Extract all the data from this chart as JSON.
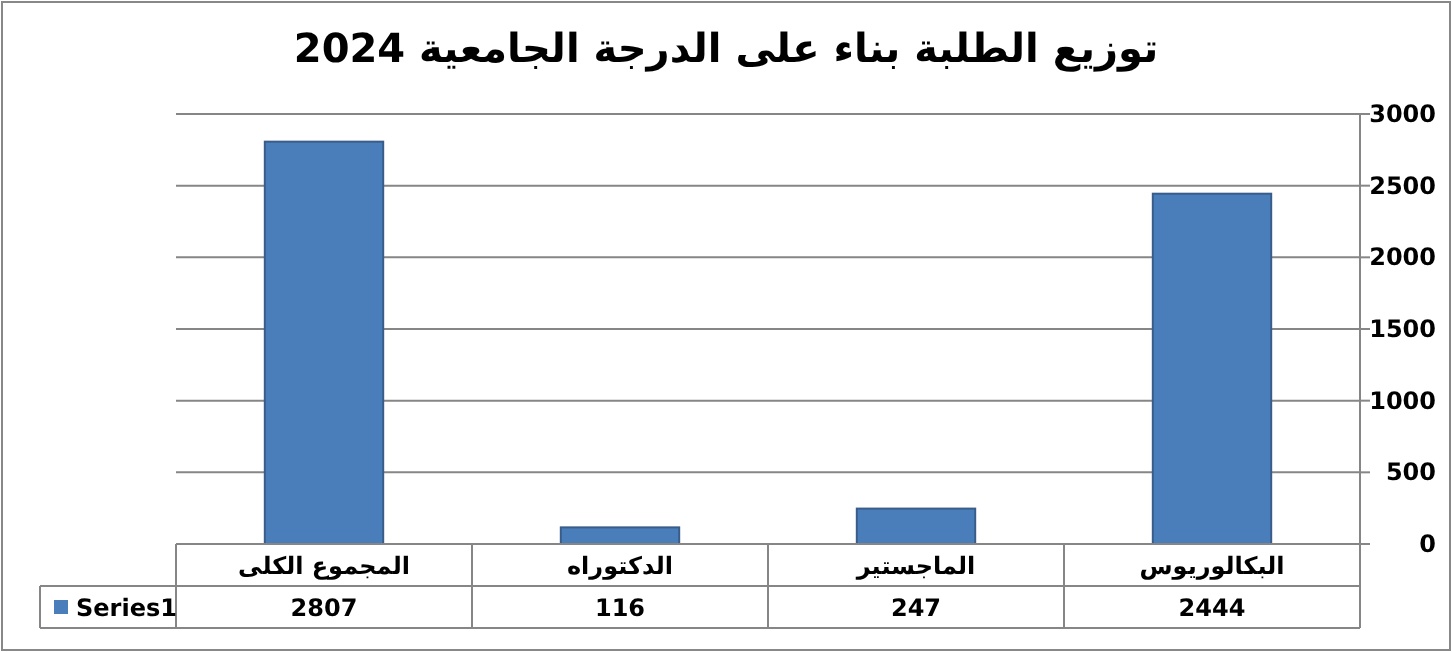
{
  "chart_data": {
    "type": "bar",
    "title": "توزيع الطلبة بناء على الدرجة الجامعية 2024",
    "categories": [
      "المجموع الكلى",
      "الدكتوراه",
      "الماجستير",
      "البكالوريوس"
    ],
    "series": [
      {
        "name": "Series1",
        "color": "#4a7ebb",
        "values": [
          2807,
          116,
          247,
          2444
        ]
      }
    ],
    "ylim": [
      0,
      3000
    ],
    "yticks": [
      0,
      500,
      1000,
      1500,
      2000,
      2500,
      3000
    ],
    "grid": "y",
    "data_labels": true,
    "legend": "bottom left"
  }
}
